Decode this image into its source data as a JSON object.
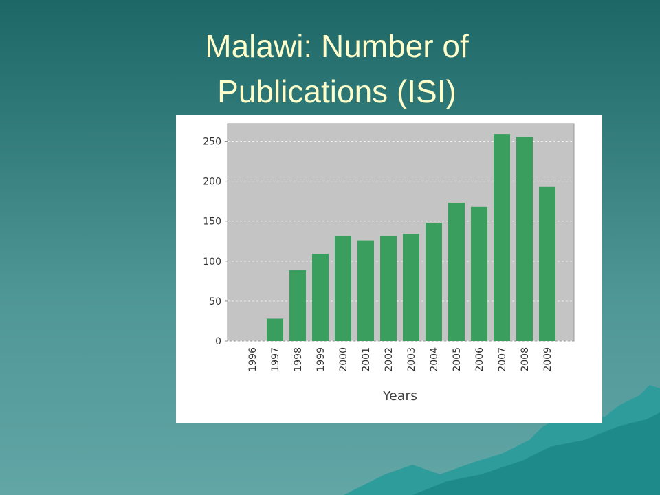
{
  "chart_data": {
    "type": "bar",
    "title": "Malawi: Number of Publications (ISI)",
    "x_label": "Years",
    "categories": [
      "1996",
      "1997",
      "1998",
      "1999",
      "2000",
      "2001",
      "2002",
      "2003",
      "2004",
      "2005",
      "2006",
      "2007",
      "2008",
      "2009"
    ],
    "values": [
      0,
      28,
      89,
      109,
      131,
      126,
      131,
      134,
      148,
      173,
      168,
      259,
      255,
      193
    ],
    "color": "#3a9e5f",
    "ylim": [
      0,
      272
    ],
    "yticks": [
      0,
      50,
      100,
      150,
      200,
      250
    ],
    "grid": true
  }
}
